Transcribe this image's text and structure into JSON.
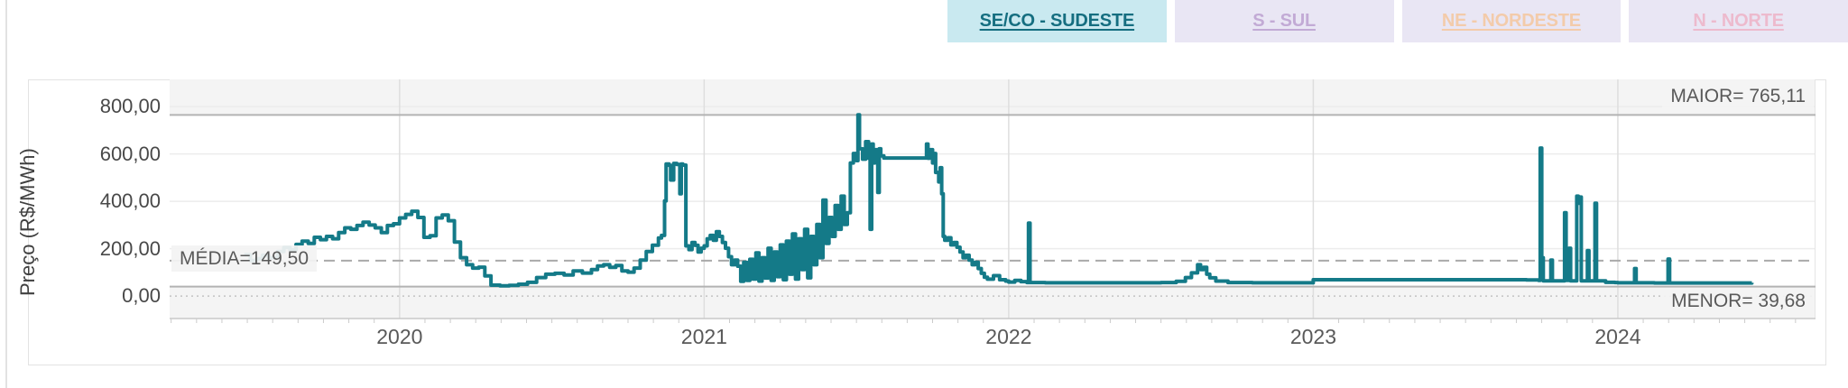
{
  "tabs": [
    {
      "label": "SE/CO - SUDESTE",
      "active": true,
      "bg": "#c9e9f0",
      "text_color": "#156e80"
    },
    {
      "label": "S - SUL",
      "active": false,
      "bg": "#e9e6f4",
      "text_color": "#c2aad5"
    },
    {
      "label": "NE - NORDESTE",
      "active": false,
      "bg": "#e9e6f4",
      "text_color": "#f3cbaa"
    },
    {
      "label": "N - NORTE",
      "active": false,
      "bg": "#e9e6f4",
      "text_color": "#edbacd"
    }
  ],
  "chart": {
    "ylabel": "Preço (R$/MWh)",
    "annotations": {
      "media": "MÉDIA=149,50",
      "maior": "MAIOR= 765,11",
      "menor": "MENOR= 39,68"
    }
  },
  "chart_data": {
    "type": "line",
    "title": "",
    "ylabel": "Preço (R$/MWh)",
    "xlabel": "",
    "xlim": [
      2019.245,
      2024.649
    ],
    "ylim": [
      -95,
      915
    ],
    "x_ticks": [
      {
        "value": 2020,
        "label": "2020"
      },
      {
        "value": 2021,
        "label": "2021"
      },
      {
        "value": 2022,
        "label": "2022"
      },
      {
        "value": 2023,
        "label": "2023"
      },
      {
        "value": 2024,
        "label": "2024"
      }
    ],
    "y_ticks": [
      {
        "value": 800,
        "label": "800,00"
      },
      {
        "value": 600,
        "label": "600,00"
      },
      {
        "value": 400,
        "label": "400,00"
      },
      {
        "value": 200,
        "label": "200,00"
      },
      {
        "value": 0,
        "label": "0,00"
      }
    ],
    "grid": true,
    "reference_lines": {
      "media": 149.5,
      "maior": 765.11,
      "menor": 39.68
    },
    "band_color": "#f4f4f4",
    "series": [
      {
        "name": "SE/CO - SUDESTE",
        "color": "#147A88",
        "points": [
          [
            2019.49,
            175
          ],
          [
            2019.51,
            150
          ],
          [
            2019.53,
            158
          ],
          [
            2019.55,
            172
          ],
          [
            2019.57,
            162
          ],
          [
            2019.6,
            188
          ],
          [
            2019.62,
            205
          ],
          [
            2019.64,
            195
          ],
          [
            2019.66,
            218
          ],
          [
            2019.68,
            232
          ],
          [
            2019.7,
            222
          ],
          [
            2019.72,
            248
          ],
          [
            2019.74,
            238
          ],
          [
            2019.76,
            252
          ],
          [
            2019.78,
            242
          ],
          [
            2019.8,
            268
          ],
          [
            2019.82,
            288
          ],
          [
            2019.84,
            282
          ],
          [
            2019.86,
            298
          ],
          [
            2019.88,
            312
          ],
          [
            2019.9,
            300
          ],
          [
            2019.92,
            288
          ],
          [
            2019.94,
            268
          ],
          [
            2019.96,
            298
          ],
          [
            2019.98,
            305
          ],
          [
            2020.0,
            330
          ],
          [
            2020.02,
            345
          ],
          [
            2020.04,
            358
          ],
          [
            2020.06,
            332
          ],
          [
            2020.08,
            248
          ],
          [
            2020.1,
            255
          ],
          [
            2020.12,
            330
          ],
          [
            2020.14,
            342
          ],
          [
            2020.16,
            318
          ],
          [
            2020.18,
            228
          ],
          [
            2020.2,
            162
          ],
          [
            2020.22,
            132
          ],
          [
            2020.24,
            118
          ],
          [
            2020.26,
            122
          ],
          [
            2020.28,
            85
          ],
          [
            2020.3,
            46
          ],
          [
            2020.33,
            43
          ],
          [
            2020.36,
            45
          ],
          [
            2020.39,
            50
          ],
          [
            2020.42,
            58
          ],
          [
            2020.45,
            78
          ],
          [
            2020.48,
            92
          ],
          [
            2020.51,
            96
          ],
          [
            2020.54,
            89
          ],
          [
            2020.57,
            106
          ],
          [
            2020.6,
            97
          ],
          [
            2020.63,
            112
          ],
          [
            2020.65,
            127
          ],
          [
            2020.67,
            132
          ],
          [
            2020.69,
            121
          ],
          [
            2020.71,
            129
          ],
          [
            2020.73,
            106
          ],
          [
            2020.75,
            101
          ],
          [
            2020.77,
            118
          ],
          [
            2020.79,
            152
          ],
          [
            2020.81,
            188
          ],
          [
            2020.83,
            215
          ],
          [
            2020.85,
            245
          ],
          [
            2020.86,
            256
          ],
          [
            2020.87,
            402
          ],
          [
            2020.875,
            558
          ],
          [
            2020.885,
            552
          ],
          [
            2020.89,
            490
          ],
          [
            2020.9,
            560
          ],
          [
            2020.91,
            556
          ],
          [
            2020.92,
            432
          ],
          [
            2020.925,
            558
          ],
          [
            2020.93,
            553
          ],
          [
            2020.94,
            212
          ],
          [
            2020.95,
            196
          ],
          [
            2020.96,
            226
          ],
          [
            2020.97,
            214
          ],
          [
            2020.98,
            186
          ],
          [
            2020.99,
            202
          ],
          [
            2021.0,
            212
          ],
          [
            2021.01,
            242
          ],
          [
            2021.02,
            256
          ],
          [
            2021.03,
            236
          ],
          [
            2021.04,
            272
          ],
          [
            2021.05,
            252
          ],
          [
            2021.06,
            226
          ],
          [
            2021.07,
            202
          ],
          [
            2021.08,
            166
          ],
          [
            2021.09,
            132
          ],
          [
            2021.1,
            152
          ],
          [
            2021.11,
            126
          ],
          [
            2021.12,
            62
          ],
          [
            2021.13,
            142
          ],
          [
            2021.14,
            66
          ],
          [
            2021.15,
            155
          ],
          [
            2021.16,
            72
          ],
          [
            2021.17,
            182
          ],
          [
            2021.18,
            63
          ],
          [
            2021.19,
            162
          ],
          [
            2021.2,
            76
          ],
          [
            2021.21,
            202
          ],
          [
            2021.22,
            66
          ],
          [
            2021.23,
            186
          ],
          [
            2021.24,
            82
          ],
          [
            2021.25,
            216
          ],
          [
            2021.26,
            69
          ],
          [
            2021.27,
            232
          ],
          [
            2021.28,
            92
          ],
          [
            2021.29,
            262
          ],
          [
            2021.3,
            72
          ],
          [
            2021.31,
            242
          ],
          [
            2021.32,
            112
          ],
          [
            2021.33,
            282
          ],
          [
            2021.34,
            77
          ],
          [
            2021.35,
            252
          ],
          [
            2021.36,
            132
          ],
          [
            2021.37,
            302
          ],
          [
            2021.38,
            162
          ],
          [
            2021.39,
            405
          ],
          [
            2021.4,
            222
          ],
          [
            2021.41,
            332
          ],
          [
            2021.42,
            252
          ],
          [
            2021.43,
            382
          ],
          [
            2021.44,
            282
          ],
          [
            2021.45,
            422
          ],
          [
            2021.46,
            302
          ],
          [
            2021.47,
            352
          ],
          [
            2021.48,
            562
          ],
          [
            2021.49,
            602
          ],
          [
            2021.5,
            572
          ],
          [
            2021.505,
            765.11
          ],
          [
            2021.51,
            622
          ],
          [
            2021.52,
            578
          ],
          [
            2021.53,
            652
          ],
          [
            2021.54,
            582
          ],
          [
            2021.545,
            282
          ],
          [
            2021.55,
            642
          ],
          [
            2021.555,
            562
          ],
          [
            2021.56,
            618
          ],
          [
            2021.57,
            438
          ],
          [
            2021.575,
            622
          ],
          [
            2021.58,
            592
          ],
          [
            2021.59,
            583
          ],
          [
            2021.72,
            583
          ],
          [
            2021.73,
            642
          ],
          [
            2021.735,
            582
          ],
          [
            2021.74,
            618
          ],
          [
            2021.75,
            562
          ],
          [
            2021.755,
            602
          ],
          [
            2021.76,
            522
          ],
          [
            2021.77,
            482
          ],
          [
            2021.775,
            542
          ],
          [
            2021.78,
            432
          ],
          [
            2021.785,
            252
          ],
          [
            2021.79,
            236
          ],
          [
            2021.8,
            246
          ],
          [
            2021.81,
            216
          ],
          [
            2021.82,
            226
          ],
          [
            2021.83,
            206
          ],
          [
            2021.84,
            186
          ],
          [
            2021.85,
            162
          ],
          [
            2021.86,
            172
          ],
          [
            2021.87,
            152
          ],
          [
            2021.88,
            132
          ],
          [
            2021.89,
            142
          ],
          [
            2021.9,
            116
          ],
          [
            2021.91,
            96
          ],
          [
            2021.92,
            79
          ],
          [
            2021.93,
            71
          ],
          [
            2021.95,
            86
          ],
          [
            2021.97,
            69
          ],
          [
            2021.99,
            63
          ],
          [
            2022.0,
            59
          ],
          [
            2022.02,
            66
          ],
          [
            2022.04,
            61
          ],
          [
            2022.06,
            57
          ],
          [
            2022.065,
            308
          ],
          [
            2022.07,
            57
          ],
          [
            2022.12,
            56
          ],
          [
            2022.2,
            56
          ],
          [
            2022.3,
            56
          ],
          [
            2022.4,
            56
          ],
          [
            2022.5,
            57
          ],
          [
            2022.55,
            62
          ],
          [
            2022.58,
            78
          ],
          [
            2022.6,
            98
          ],
          [
            2022.62,
            132
          ],
          [
            2022.63,
            112
          ],
          [
            2022.64,
            121
          ],
          [
            2022.65,
            92
          ],
          [
            2022.66,
            77
          ],
          [
            2022.68,
            63
          ],
          [
            2022.72,
            57
          ],
          [
            2022.8,
            56
          ],
          [
            2022.9,
            56
          ],
          [
            2022.99,
            56
          ],
          [
            2023.0,
            69
          ],
          [
            2023.15,
            69
          ],
          [
            2023.3,
            69
          ],
          [
            2023.45,
            69
          ],
          [
            2023.6,
            69
          ],
          [
            2023.7,
            68
          ],
          [
            2023.74,
            66
          ],
          [
            2023.745,
            625
          ],
          [
            2023.75,
            162
          ],
          [
            2023.755,
            64
          ],
          [
            2023.78,
            152
          ],
          [
            2023.785,
            64
          ],
          [
            2023.82,
            64
          ],
          [
            2023.825,
            352
          ],
          [
            2023.83,
            66
          ],
          [
            2023.84,
            202
          ],
          [
            2023.845,
            64
          ],
          [
            2023.86,
            64
          ],
          [
            2023.865,
            422
          ],
          [
            2023.87,
            392
          ],
          [
            2023.875,
            418
          ],
          [
            2023.88,
            64
          ],
          [
            2023.9,
            192
          ],
          [
            2023.905,
            64
          ],
          [
            2023.92,
            64
          ],
          [
            2023.925,
            392
          ],
          [
            2023.93,
            64
          ],
          [
            2023.96,
            58
          ],
          [
            2023.99,
            57
          ],
          [
            2024.0,
            56
          ],
          [
            2024.05,
            56
          ],
          [
            2024.055,
            116
          ],
          [
            2024.06,
            56
          ],
          [
            2024.12,
            55
          ],
          [
            2024.16,
            55
          ],
          [
            2024.165,
            156
          ],
          [
            2024.17,
            55
          ],
          [
            2024.25,
            55
          ],
          [
            2024.35,
            55
          ],
          [
            2024.44,
            56
          ]
        ]
      }
    ],
    "legend": false
  }
}
